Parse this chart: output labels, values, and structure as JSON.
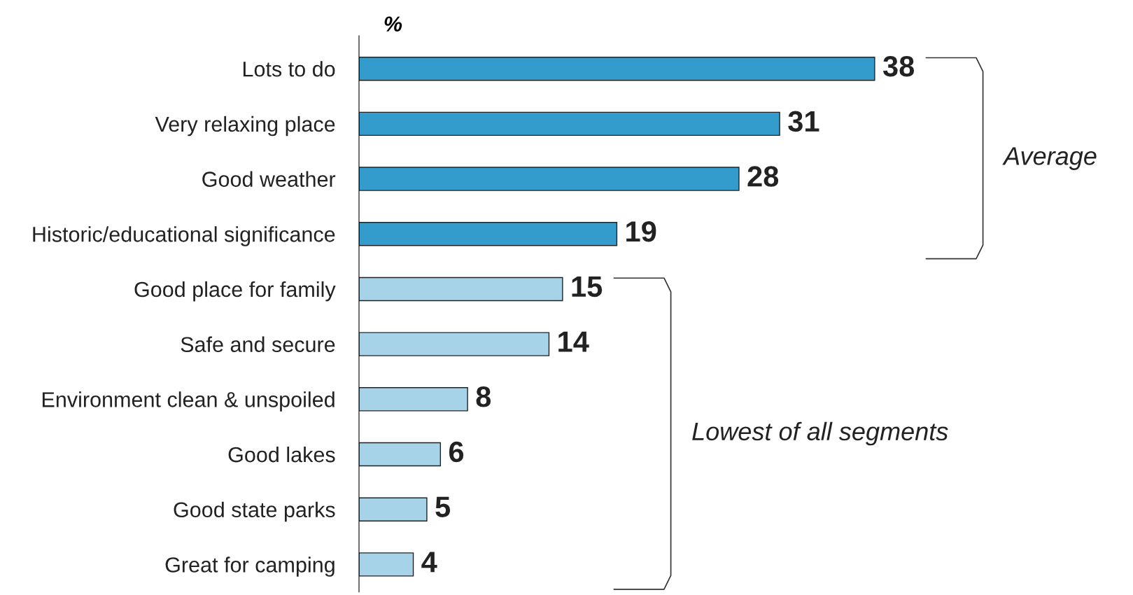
{
  "chart_data": {
    "type": "bar",
    "orientation": "horizontal",
    "xlabel": "%",
    "categories": [
      "Lots to do",
      "Very relaxing place",
      "Good weather",
      "Historic/educational significance",
      "Good place for family",
      "Safe and secure",
      "Environment clean & unspoiled",
      "Good lakes",
      "Good state parks",
      "Great for camping"
    ],
    "values": [
      38,
      31,
      28,
      19,
      15,
      14,
      8,
      6,
      5,
      4
    ],
    "colors": [
      "#339ccc",
      "#339ccc",
      "#339ccc",
      "#339ccc",
      "#a6d3e8",
      "#a6d3e8",
      "#a6d3e8",
      "#a6d3e8",
      "#a6d3e8",
      "#a6d3e8"
    ],
    "data_labels": true,
    "grid": false,
    "legend": false,
    "annotations": [
      "Average",
      "Lowest of all segments"
    ]
  }
}
